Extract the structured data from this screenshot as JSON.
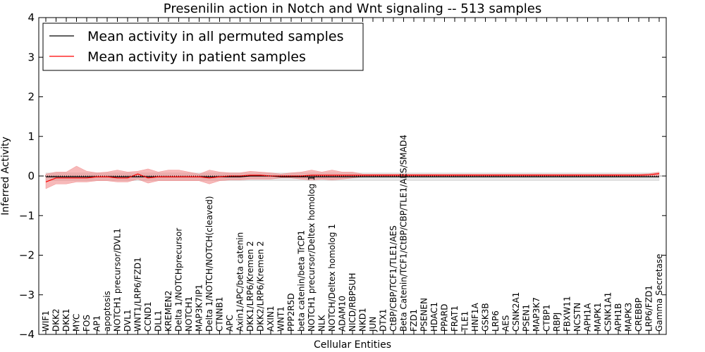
{
  "chart_data": {
    "type": "line",
    "title": "Presenilin action in Notch and Wnt signaling -- 513 samples",
    "xlabel": "Cellular Entities",
    "ylabel": "Inferred Activity",
    "ylim": [
      -4,
      4
    ],
    "yticks": [
      -4,
      -3,
      -2,
      -1,
      0,
      1,
      2,
      3,
      4
    ],
    "grid": false,
    "legend_position": "top-left",
    "categories": [
      "WIF1",
      "DKK2",
      "DKK1",
      "MYC",
      "FOS",
      "AP1",
      "apoptosis",
      "NOTCH1 precursor/DVL1",
      "DVL1",
      "WNT1/LRP6/FZD1",
      "CCND1",
      "DLL1",
      "KREMEN2",
      "Delta 1/NOTCHprecursor",
      "NOTCH1",
      "MAP3K7IP1",
      "Delta 1/NOTCH/NOTCH(cleaved)",
      "CTNNB1",
      "APC",
      "Axin1/APC/beta catenin",
      "DKK1/LRP6/Kremen 2",
      "DKK2/LRP6/Kremen 2",
      "AXIN1",
      "WNT1",
      "PPP2R5D",
      "beta catenin/beta TrCP1",
      "NOTCH1 precursor/Deltex homolog 1",
      "NLK",
      "NOTCH/Deltex homolog 1",
      "ADAM10",
      "NICD/RBPSUH",
      "NKD1",
      "JUN",
      "DTX1",
      "CtBP/CBP/TCF1/TLE1/AES",
      "Beta Catenin/TCF1/CtBP/CBP/TLE1/AES/SMAD4",
      "FZD1",
      "PSENEN",
      "HDAC1",
      "PPARD",
      "FRAT1",
      "TLE1",
      "HNF1A",
      "GSK3B",
      "LRP6",
      "AES",
      "CSNK2A1",
      "PSEN1",
      "MAP3K7",
      "CTBP1",
      "RBPJ",
      "FBXW11",
      "NCSTN",
      "APH1A",
      "MAPK1",
      "CSNK1A1",
      "APH1B",
      "MAPK3",
      "CREBBP",
      "LRP6/FZD1",
      "Gamma Secretase"
    ],
    "series": [
      {
        "name": "Mean activity in all permuted samples",
        "color": "#000000",
        "band_color": "#d3d3d3",
        "values": [
          -0.02,
          -0.02,
          -0.02,
          -0.02,
          -0.02,
          -0.02,
          -0.02,
          -0.02,
          -0.02,
          -0.02,
          -0.02,
          -0.02,
          -0.02,
          -0.02,
          -0.02,
          -0.02,
          -0.02,
          -0.02,
          -0.02,
          -0.02,
          0.0,
          0.0,
          0.0,
          -0.02,
          -0.02,
          -0.02,
          -0.02,
          -0.02,
          -0.02,
          -0.02,
          -0.02,
          -0.02,
          -0.02,
          -0.02,
          -0.02,
          -0.02,
          -0.02,
          -0.02,
          -0.02,
          -0.02,
          -0.02,
          -0.02,
          -0.02,
          -0.02,
          -0.02,
          -0.02,
          -0.02,
          -0.02,
          -0.02,
          -0.02,
          -0.02,
          -0.02,
          -0.02,
          -0.02,
          -0.02,
          -0.02,
          -0.02,
          -0.02,
          -0.02,
          -0.02,
          -0.02
        ],
        "lower": [
          -0.12,
          -0.12,
          -0.12,
          -0.12,
          -0.12,
          -0.12,
          -0.12,
          -0.12,
          -0.12,
          -0.12,
          -0.12,
          -0.12,
          -0.12,
          -0.12,
          -0.12,
          -0.12,
          -0.12,
          -0.12,
          -0.12,
          -0.12,
          -0.12,
          -0.12,
          -0.12,
          -0.12,
          -0.12,
          -0.12,
          -0.12,
          -0.12,
          -0.12,
          -0.12,
          -0.12,
          -0.12,
          -0.12,
          -0.12,
          -0.12,
          -0.12,
          -0.12,
          -0.12,
          -0.12,
          -0.12,
          -0.12,
          -0.12,
          -0.12,
          -0.12,
          -0.12,
          -0.12,
          -0.12,
          -0.12,
          -0.12,
          -0.12,
          -0.12,
          -0.12,
          -0.12,
          -0.12,
          -0.12,
          -0.12,
          -0.12,
          -0.12,
          -0.12,
          -0.12,
          -0.12
        ],
        "upper": [
          0.08,
          0.08,
          0.08,
          0.08,
          0.08,
          0.08,
          0.08,
          0.08,
          0.08,
          0.08,
          0.08,
          0.08,
          0.08,
          0.08,
          0.08,
          0.08,
          0.08,
          0.08,
          0.08,
          0.08,
          0.08,
          0.08,
          0.08,
          0.08,
          0.08,
          0.08,
          0.08,
          0.08,
          0.08,
          0.08,
          0.08,
          0.08,
          0.08,
          0.08,
          0.08,
          0.08,
          0.08,
          0.08,
          0.08,
          0.08,
          0.08,
          0.08,
          0.08,
          0.08,
          0.08,
          0.08,
          0.08,
          0.08,
          0.08,
          0.08,
          0.08,
          0.08,
          0.08,
          0.08,
          0.08,
          0.08,
          0.08,
          0.08,
          0.08,
          0.08,
          0.08
        ]
      },
      {
        "name": "Mean activity in patient samples",
        "color": "#ff0000",
        "band_color": "#f08080",
        "values": [
          -0.15,
          -0.05,
          -0.05,
          -0.05,
          -0.05,
          -0.02,
          -0.02,
          -0.05,
          -0.05,
          0.05,
          -0.05,
          -0.02,
          -0.02,
          -0.02,
          -0.02,
          -0.02,
          -0.05,
          -0.02,
          0.0,
          0.0,
          0.02,
          0.02,
          0.0,
          0.0,
          0.0,
          0.0,
          0.02,
          0.02,
          0.02,
          0.02,
          0.02,
          0.02,
          0.02,
          0.02,
          0.02,
          0.02,
          0.02,
          0.02,
          0.02,
          0.02,
          0.02,
          0.02,
          0.02,
          0.02,
          0.02,
          0.02,
          0.02,
          0.02,
          0.02,
          0.02,
          0.02,
          0.02,
          0.02,
          0.02,
          0.02,
          0.02,
          0.02,
          0.02,
          0.02,
          0.03,
          0.06
        ],
        "lower": [
          -0.32,
          -0.2,
          -0.2,
          -0.15,
          -0.15,
          -0.12,
          -0.12,
          -0.15,
          -0.15,
          -0.08,
          -0.18,
          -0.12,
          -0.12,
          -0.12,
          -0.12,
          -0.12,
          -0.2,
          -0.12,
          -0.1,
          -0.1,
          -0.08,
          -0.08,
          -0.08,
          -0.05,
          -0.05,
          -0.08,
          -0.1,
          -0.08,
          -0.1,
          -0.08,
          -0.05,
          -0.02,
          -0.02,
          -0.02,
          -0.02,
          0.0,
          0.0,
          0.0,
          0.0,
          0.0,
          0.0,
          0.0,
          0.0,
          0.0,
          0.0,
          0.0,
          0.0,
          0.0,
          0.0,
          0.0,
          0.0,
          0.0,
          0.0,
          0.0,
          0.0,
          0.0,
          0.0,
          0.0,
          0.0,
          0.0,
          0.0
        ],
        "upper": [
          0.05,
          0.1,
          0.1,
          0.25,
          0.12,
          0.08,
          0.1,
          0.15,
          0.1,
          0.12,
          0.18,
          0.1,
          0.15,
          0.15,
          0.1,
          0.05,
          0.15,
          0.1,
          0.08,
          0.08,
          0.12,
          0.1,
          0.08,
          0.05,
          0.08,
          0.1,
          0.15,
          0.1,
          0.15,
          0.1,
          0.1,
          0.05,
          0.05,
          0.05,
          0.05,
          0.05,
          0.05,
          0.05,
          0.05,
          0.05,
          0.05,
          0.05,
          0.05,
          0.05,
          0.05,
          0.05,
          0.05,
          0.05,
          0.05,
          0.05,
          0.05,
          0.05,
          0.05,
          0.05,
          0.05,
          0.05,
          0.05,
          0.05,
          0.05,
          0.06,
          0.1
        ]
      }
    ]
  }
}
